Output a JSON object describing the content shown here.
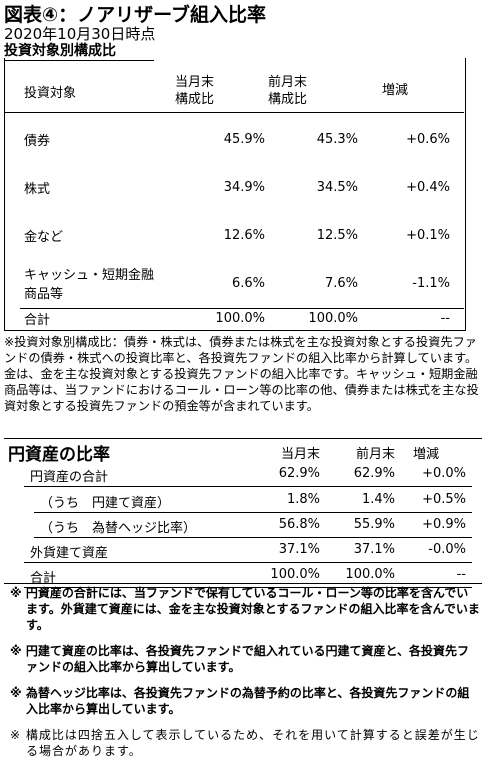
{
  "header": {
    "title": "図表④：ノアリザーブ組入比率",
    "date": "2020年10月30日時点"
  },
  "table1": {
    "title": "投資対象別構成比",
    "columns": [
      "投資対象",
      "当月末\n構成比",
      "前月末\n構成比",
      "増減"
    ],
    "rows": [
      [
        "債券",
        "45.9%",
        "45.3%",
        "+0.6%"
      ],
      [
        "株式",
        "34.9%",
        "34.5%",
        "+0.4%"
      ],
      [
        "金など",
        "12.6%",
        "12.5%",
        "+0.1%"
      ],
      [
        "キャッシュ・短期金融\n商品等",
        "6.6%",
        "7.6%",
        "-1.1%"
      ],
      [
        "合計",
        "100.0%",
        "100.0%",
        "--"
      ]
    ],
    "note": "※投資対象別構成比：債券・株式は、債券または株式を主な投資対象とする投資先ファンドの債券・株式への投資比率と、各投資先ファンドの組入比率から計算しています。金は、金を主な投資対象とする投資先ファンドの組入比率です。キャッシュ・短期金融商品等は、当ファンドにおけるコール・ローン等の比率の他、債券または株式を主な投資対象とする投資先ファンドの預金等が含まれています。"
  },
  "table2": {
    "columns": [
      "円資産の比率",
      "当月末",
      "前月末",
      "増減"
    ],
    "rows": [
      [
        "円資産の合計",
        "62.9%",
        "62.9%",
        "+0.0%"
      ],
      [
        "（うち　円建て資産）",
        "1.8%",
        "1.4%",
        "+0.5%"
      ],
      [
        "（うち　為替ヘッジ比率）",
        "56.8%",
        "55.9%",
        "+0.9%"
      ],
      [
        "外貨建て資産",
        "37.1%",
        "37.1%",
        "-0.0%"
      ],
      [
        "合計",
        "100.0%",
        "100.0%",
        "--"
      ]
    ]
  },
  "notes": [
    "※ 円資産の合計には、当ファンドで保有しているコール・ローン等の比率を含んでいます。外貨建て資産には、金を主な投資対象とするファンドの組入比率を含んでいます。",
    "※ 円建て資産の比率は、各投資先ファンドで組入れている円建て資産と、各投資先ファンドの組入比率から算出しています。",
    "※ 為替ヘッジ比率は、各投資先ファンドの為替予約の比率と、各投資先ファンドの組入比率から算出しています。",
    "※ 構成比は四捨五入して表示しているため、それを用いて計算すると誤差が生じる場合があります。"
  ]
}
